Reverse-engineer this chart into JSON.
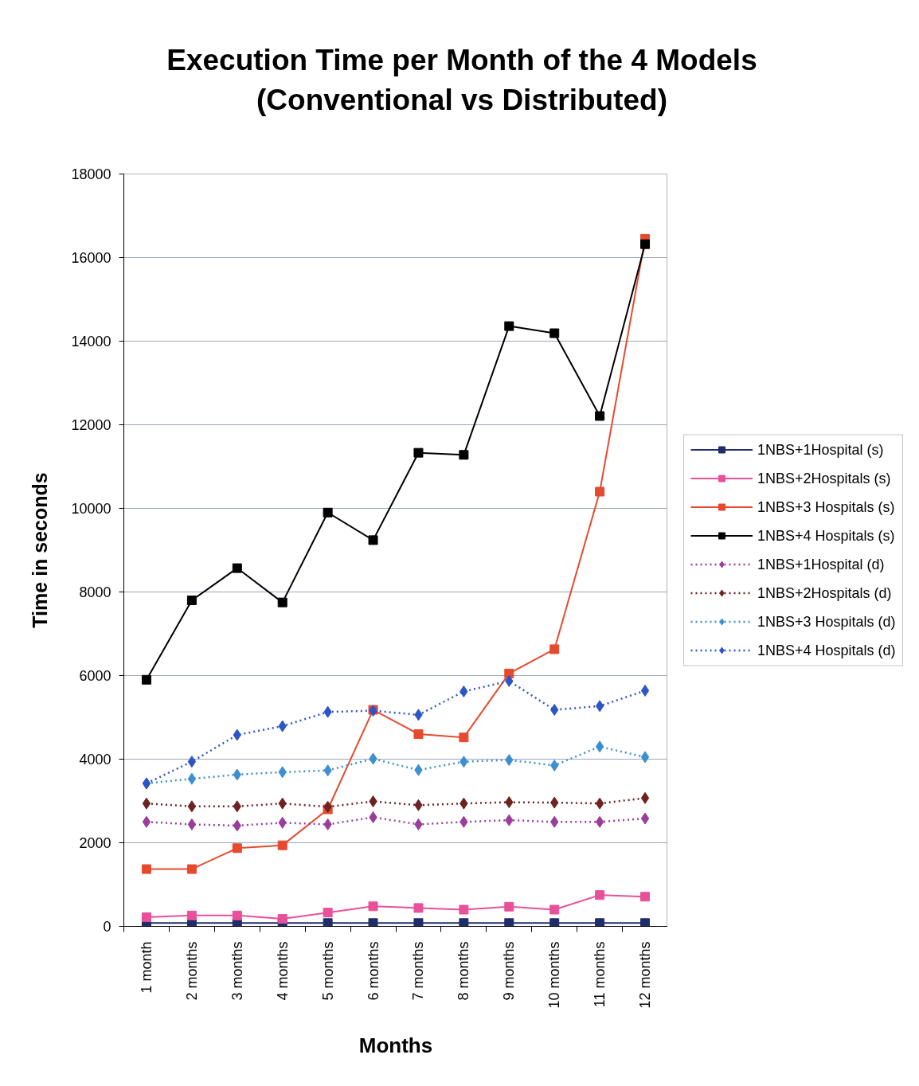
{
  "chart_data": {
    "type": "line",
    "title": "Execution Time per Month of the 4 Models\n(Conventional vs Distributed)",
    "xlabel": "Months",
    "ylabel": "Time in seconds",
    "categories": [
      "1 month",
      "2 months",
      "3 months",
      "4 months",
      "5 months",
      "6 months",
      "7 months",
      "8 months",
      "9 months",
      "10 months",
      "11 months",
      "12 months"
    ],
    "ylim": [
      0,
      18000
    ],
    "yticks": [
      0,
      2000,
      4000,
      6000,
      8000,
      10000,
      12000,
      14000,
      16000,
      18000
    ],
    "grid": "y",
    "legend": "right",
    "series": [
      {
        "name": "1NBS+1Hospital (s)",
        "color": "#1f2d6b",
        "marker": "square",
        "line_style": "solid",
        "values": [
          80,
          80,
          80,
          80,
          80,
          80,
          80,
          80,
          80,
          80,
          80,
          80
        ]
      },
      {
        "name": "1NBS+2Hospitals (s)",
        "color": "#e8509a",
        "marker": "square",
        "line_style": "solid",
        "values": [
          220,
          260,
          260,
          180,
          330,
          480,
          440,
          400,
          470,
          400,
          750,
          710
        ]
      },
      {
        "name": "1NBS+3 Hospitals (s)",
        "color": "#e64a2e",
        "marker": "square",
        "line_style": "solid",
        "values": [
          1370,
          1370,
          1870,
          1940,
          2800,
          5180,
          4600,
          4520,
          6050,
          6630,
          10400,
          16450
        ]
      },
      {
        "name": "1NBS+4 Hospitals (s)",
        "color": "#000000",
        "marker": "square",
        "line_style": "solid",
        "values": [
          5900,
          7800,
          8570,
          7750,
          9900,
          9240,
          11330,
          11280,
          14360,
          14190,
          12210,
          16320
        ]
      },
      {
        "name": "1NBS+1Hospital (d)",
        "color": "#9b3d9b",
        "marker": "diamond",
        "line_style": "dotted",
        "values": [
          2500,
          2440,
          2410,
          2480,
          2440,
          2610,
          2440,
          2500,
          2540,
          2500,
          2500,
          2580
        ]
      },
      {
        "name": "1NBS+2Hospitals (d)",
        "color": "#6e2323",
        "marker": "diamond",
        "line_style": "dotted",
        "values": [
          2940,
          2870,
          2870,
          2940,
          2860,
          2990,
          2900,
          2940,
          2970,
          2960,
          2940,
          3070
        ]
      },
      {
        "name": "1NBS+3 Hospitals (d)",
        "color": "#3d8fd1",
        "marker": "diamond",
        "line_style": "dotted",
        "values": [
          3420,
          3530,
          3630,
          3690,
          3730,
          4010,
          3740,
          3940,
          3980,
          3850,
          4300,
          4050
        ]
      },
      {
        "name": "1NBS+4 Hospitals (d)",
        "color": "#2e55c6",
        "marker": "diamond",
        "line_style": "dotted",
        "values": [
          3420,
          3940,
          4580,
          4790,
          5130,
          5160,
          5060,
          5620,
          5870,
          5180,
          5270,
          5640
        ]
      }
    ]
  }
}
